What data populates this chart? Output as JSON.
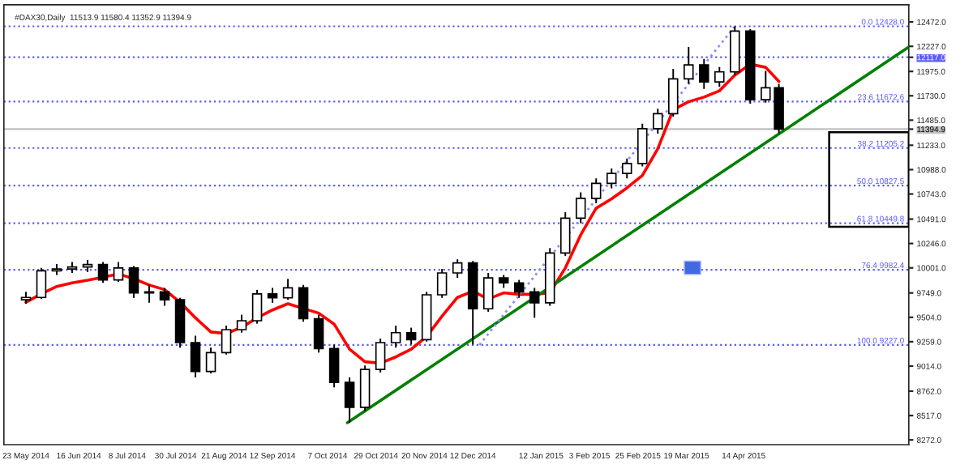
{
  "chart_data": {
    "type": "candlestick",
    "title": "#DAX30,Daily  11513.9 11580.4 11352.9 11394.9",
    "x": [
      "2014-05-23",
      "2014-05-30",
      "2014-06-06",
      "2014-06-13",
      "2014-06-20",
      "2014-06-27",
      "2014-07-04",
      "2014-07-11",
      "2014-07-18",
      "2014-07-25",
      "2014-08-01",
      "2014-08-08",
      "2014-08-15",
      "2014-08-22",
      "2014-08-29",
      "2014-09-05",
      "2014-09-12",
      "2014-09-19",
      "2014-09-26",
      "2014-10-03",
      "2014-10-10",
      "2014-10-17",
      "2014-10-24",
      "2014-10-31",
      "2014-11-07",
      "2014-11-14",
      "2014-11-21",
      "2014-11-28",
      "2014-12-05",
      "2014-12-12",
      "2014-12-19",
      "2014-12-26",
      "2015-01-02",
      "2015-01-09",
      "2015-01-16",
      "2015-01-23",
      "2015-01-30",
      "2015-02-06",
      "2015-02-13",
      "2015-02-20",
      "2015-02-27",
      "2015-03-06",
      "2015-03-13",
      "2015-03-20",
      "2015-03-27",
      "2015-04-03",
      "2015-04-10",
      "2015-04-17",
      "2015-04-24",
      "2015-04-30"
    ],
    "ohlc": [
      [
        9680,
        9760,
        9640,
        9704
      ],
      [
        9704,
        10000,
        9690,
        9971
      ],
      [
        9971,
        10040,
        9930,
        9990
      ],
      [
        9990,
        10060,
        9950,
        10010
      ],
      [
        10010,
        10080,
        9960,
        10034
      ],
      [
        10034,
        10060,
        9850,
        9880
      ],
      [
        9880,
        10060,
        9860,
        10000
      ],
      [
        10000,
        10020,
        9700,
        9750
      ],
      [
        9750,
        9830,
        9650,
        9760
      ],
      [
        9760,
        9800,
        9620,
        9680
      ],
      [
        9680,
        9700,
        9200,
        9250
      ],
      [
        9250,
        9320,
        8900,
        8960
      ],
      [
        8960,
        9200,
        8940,
        9150
      ],
      [
        9150,
        9420,
        9130,
        9380
      ],
      [
        9380,
        9530,
        9350,
        9470
      ],
      [
        9470,
        9780,
        9440,
        9740
      ],
      [
        9740,
        9800,
        9650,
        9700
      ],
      [
        9700,
        9890,
        9680,
        9800
      ],
      [
        9800,
        9830,
        9460,
        9490
      ],
      [
        9490,
        9530,
        9150,
        9190
      ],
      [
        9190,
        9230,
        8800,
        8850
      ],
      [
        8850,
        8900,
        8445,
        8600
      ],
      [
        8600,
        9020,
        8560,
        8980
      ],
      [
        8980,
        9290,
        8950,
        9250
      ],
      [
        9250,
        9420,
        9200,
        9350
      ],
      [
        9350,
        9400,
        9230,
        9280
      ],
      [
        9280,
        9760,
        9260,
        9730
      ],
      [
        9730,
        9990,
        9700,
        9950
      ],
      [
        9950,
        10087,
        9900,
        10050
      ],
      [
        10050,
        10070,
        9230,
        9590
      ],
      [
        9590,
        9950,
        9560,
        9900
      ],
      [
        9900,
        9930,
        9800,
        9850
      ],
      [
        9850,
        9880,
        9700,
        9760
      ],
      [
        9760,
        9800,
        9500,
        9650
      ],
      [
        9650,
        10200,
        9620,
        10150
      ],
      [
        10150,
        10560,
        10120,
        10500
      ],
      [
        10500,
        10760,
        10450,
        10700
      ],
      [
        10700,
        10900,
        10650,
        10850
      ],
      [
        10850,
        11000,
        10800,
        10950
      ],
      [
        10950,
        11100,
        10900,
        11050
      ],
      [
        11050,
        11450,
        11020,
        11400
      ],
      [
        11400,
        11600,
        11350,
        11550
      ],
      [
        11550,
        12000,
        11520,
        11900
      ],
      [
        11900,
        12220,
        11850,
        12040
      ],
      [
        12040,
        12100,
        11800,
        11870
      ],
      [
        11870,
        12020,
        11820,
        11970
      ],
      [
        11970,
        12428,
        11940,
        12380
      ],
      [
        12380,
        12400,
        11650,
        11690
      ],
      [
        11690,
        11980,
        11660,
        11810
      ],
      [
        11810,
        11850,
        11352.9,
        11394.9
      ]
    ],
    "series": [
      {
        "type": "line",
        "color": "#ff0000",
        "line_style": "solid",
        "values": [
          9656,
          9740,
          9814,
          9850,
          9877,
          9908,
          9940,
          9892,
          9829,
          9782,
          9656,
          9499,
          9357,
          9342,
          9404,
          9499,
          9578,
          9641,
          9593,
          9546,
          9436,
          9184,
          9058,
          9043,
          9106,
          9184,
          9310,
          9515,
          9704,
          9766,
          9688,
          9750,
          9735,
          9735,
          9750,
          10000,
          10333,
          10600,
          10695,
          10805,
          10930,
          11198,
          11591,
          11670,
          11717,
          11780,
          11937,
          12047,
          12016,
          11874
        ]
      },
      {
        "type": "line",
        "color": "#008000",
        "line_style": "solid",
        "x": [
          "2014-10-16",
          "2015-06-28"
        ],
        "values": [
          8445,
          12220
        ]
      },
      {
        "type": "line",
        "color": "#8c8cff",
        "line_style": "dotted",
        "x": [
          "2014-12-15",
          "2015-04-10"
        ],
        "values": [
          9227,
          12428
        ]
      }
    ],
    "ref_lines": [
      {
        "axis": "y",
        "value": 12428,
        "label": "0.0 12428.0",
        "color": "#5a5aff",
        "line_style": "dotted"
      },
      {
        "axis": "y",
        "value": 12117,
        "color": "#5a5aff",
        "line_style": "dotted"
      },
      {
        "axis": "y",
        "value": 11672.6,
        "label": "23.6 11672.6",
        "color": "#5a5aff",
        "line_style": "dotted"
      },
      {
        "axis": "y",
        "value": 11394.9,
        "color": "#c0c0c0",
        "line_style": "solid"
      },
      {
        "axis": "y",
        "value": 11205.2,
        "label": "38.2 11205.2",
        "color": "#5a5aff",
        "line_style": "dotted"
      },
      {
        "axis": "y",
        "value": 10827.5,
        "label": "50.0 10827.5",
        "color": "#5a5aff",
        "line_style": "dotted"
      },
      {
        "axis": "y",
        "value": 10449.8,
        "label": "61.8 10449.8",
        "color": "#5a5aff",
        "line_style": "dotted"
      },
      {
        "axis": "y",
        "value": 9982.4,
        "label": "76.4 9982.4",
        "color": "#5a5aff",
        "line_style": "dotted"
      },
      {
        "axis": "y",
        "value": 9227.0,
        "label": "100.0 9227.0",
        "color": "#5a5aff",
        "line_style": "dotted"
      }
    ],
    "xlim": [
      "2014-05-13",
      "2015-06-28"
    ],
    "xticks": [
      {
        "value": "2014-05-23",
        "label": "23 May 2014"
      },
      {
        "value": "2014-06-16",
        "label": "16 Jun 2014"
      },
      {
        "value": "2014-07-08",
        "label": "8 Jul 2014"
      },
      {
        "value": "2014-07-30",
        "label": "30 Jul 2014"
      },
      {
        "value": "2014-08-21",
        "label": "21 Aug 2014"
      },
      {
        "value": "2014-09-12",
        "label": "12 Sep 2014"
      },
      {
        "value": "2014-10-07",
        "label": "7 Oct 2014"
      },
      {
        "value": "2014-10-29",
        "label": "29 Oct 2014"
      },
      {
        "value": "2014-11-20",
        "label": "20 Nov 2014"
      },
      {
        "value": "2014-12-12",
        "label": "12 Dec 2014"
      },
      {
        "value": "2015-01-12",
        "label": "12 Jan 2015"
      },
      {
        "value": "2015-02-03",
        "label": "3 Feb 2015"
      },
      {
        "value": "2015-02-25",
        "label": "25 Feb 2015"
      },
      {
        "value": "2015-03-19",
        "label": "19 Mar 2015"
      },
      {
        "value": "2015-04-14",
        "label": "14 Apr 2015"
      }
    ],
    "ylim": [
      8225,
      12645
    ],
    "yticks": [
      {
        "value": 12472,
        "label": "12472.0"
      },
      {
        "value": 12227,
        "label": "12227.0"
      },
      {
        "value": 12117,
        "label": "12117.0"
      },
      {
        "value": 11975,
        "label": "11975.0"
      },
      {
        "value": 11730,
        "label": "11730.0"
      },
      {
        "value": 11485,
        "label": "11485.0"
      },
      {
        "value": 11394.9,
        "label": "11394.9"
      },
      {
        "value": 11233,
        "label": "11233.0"
      },
      {
        "value": 10988,
        "label": "10988.0"
      },
      {
        "value": 10743,
        "label": "10743.0"
      },
      {
        "value": 10491,
        "label": "10491.0"
      },
      {
        "value": 10246,
        "label": "10246.0"
      },
      {
        "value": 10001,
        "label": "10001.0"
      },
      {
        "value": 9749,
        "label": "9749.0"
      },
      {
        "value": 9504,
        "label": "9504.0"
      },
      {
        "value": 9259,
        "label": "9259.0"
      },
      {
        "value": 9014,
        "label": "9014.0"
      },
      {
        "value": 8762,
        "label": "8762.0"
      },
      {
        "value": 8517,
        "label": "8517.0"
      },
      {
        "value": 8272,
        "label": "8272.0"
      }
    ]
  }
}
